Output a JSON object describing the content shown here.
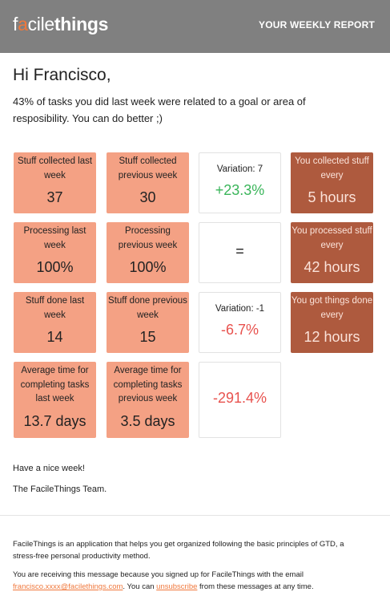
{
  "header": {
    "logo": {
      "f": "f",
      "a": "a",
      "cile": "cile",
      "things": "things"
    },
    "title": "YOUR WEEKLY REPORT"
  },
  "greeting": "Hi Francisco,",
  "intro": "43% of tasks you did last week were related to a goal or area of resposibility. You can do better ;)",
  "rows": [
    {
      "a": {
        "label": "Stuff collected last week",
        "value": "37"
      },
      "b": {
        "label": "Stuff collected previous week",
        "value": "30"
      },
      "c": {
        "label": "Variation: 7",
        "value": "+23.3%"
      },
      "d": {
        "label": "You collected stuff every",
        "value": "5 hours"
      }
    },
    {
      "a": {
        "label": "Processing last week",
        "value": "100%"
      },
      "b": {
        "label": "Processing previous week",
        "value": "100%"
      },
      "c": {
        "label": "",
        "value": "="
      },
      "d": {
        "label": "You processed stuff every",
        "value": "42 hours"
      }
    },
    {
      "a": {
        "label": "Stuff done last week",
        "value": "14"
      },
      "b": {
        "label": "Stuff done previous week",
        "value": "15"
      },
      "c": {
        "label": "Variation: -1",
        "value": "-6.7%"
      },
      "d": {
        "label": "You got things done every",
        "value": "12 hours"
      }
    },
    {
      "a": {
        "label": "Average time for completing tasks last week",
        "value": "13.7 days"
      },
      "b": {
        "label": "Average time for completing tasks previous week",
        "value": "3.5 days"
      },
      "c": {
        "label": "",
        "value": "-291.4%"
      }
    }
  ],
  "closing": {
    "line1": "Have a nice week!",
    "line2": "The FacileThings Team."
  },
  "footer": {
    "about": "FacileThings is an application that helps you get organized following the basic principles of GTD, a stress-free personal productivity method.",
    "receiving_prefix": "You are receiving this message because you signed up for FacileThings with the email",
    "email": "francisco.xxxx@facilethings.com",
    "you_can": ". You can",
    "unsubscribe": "unsubscribe",
    "suffix": "from these messages at any time."
  },
  "colors": {
    "header_bg": "#808080",
    "accent": "#f0783c",
    "salmon": "#f4a184",
    "rust": "#ae5a3e",
    "positive": "#3ab55a",
    "negative": "#e8524e"
  }
}
